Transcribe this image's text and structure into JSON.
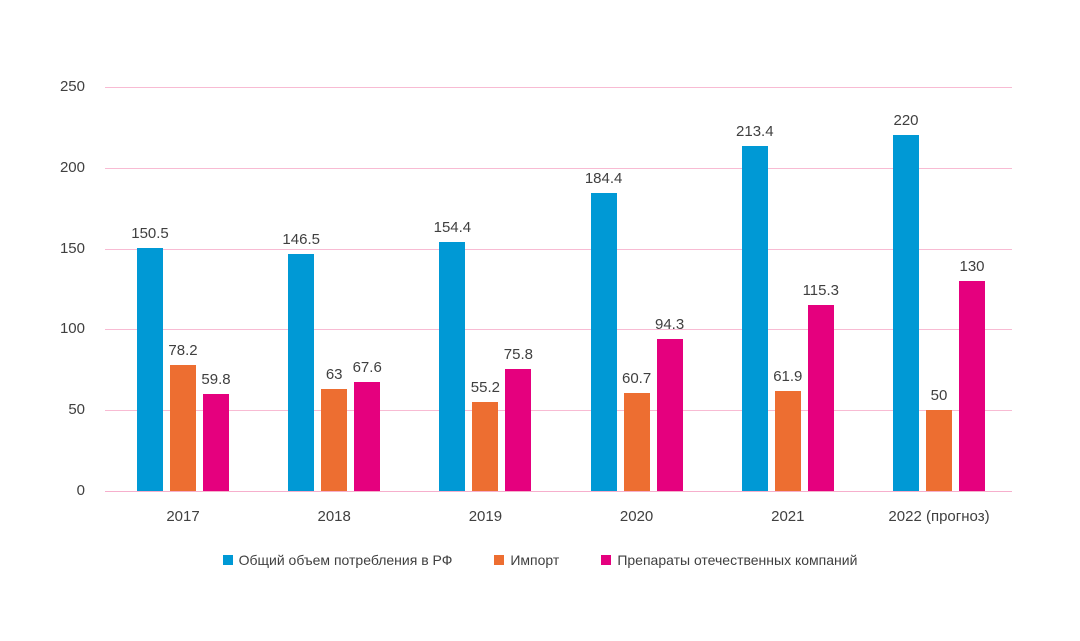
{
  "chart_data": {
    "type": "bar",
    "categories": [
      "2017",
      "2018",
      "2019",
      "2020",
      "2021",
      "2022 (прогноз)"
    ],
    "series": [
      {
        "name": "Общий объем потребления в РФ",
        "color": "#0099D5",
        "values": [
          150.5,
          146.5,
          154.4,
          184.4,
          213.4,
          220
        ],
        "labels": [
          "150.5",
          "146.5",
          "154.4",
          "184.4",
          "213.4",
          "220"
        ]
      },
      {
        "name": "Импорт",
        "color": "#ED6E31",
        "values": [
          78.2,
          63,
          55.2,
          60.7,
          61.9,
          50
        ],
        "labels": [
          "78.2",
          "63",
          "55.2",
          "60.7",
          "61.9",
          "50"
        ]
      },
      {
        "name": "Препараты отечественных компаний",
        "color": "#E5007E",
        "values": [
          59.8,
          67.6,
          75.8,
          94.3,
          115.3,
          130
        ],
        "labels": [
          "59.8",
          "67.6",
          "75.8",
          "94.3",
          "115.3",
          "130"
        ]
      }
    ],
    "title": "",
    "xlabel": "",
    "ylabel": "",
    "yticks": [
      0,
      50,
      100,
      150,
      200,
      250
    ],
    "ytick_labels": [
      "0",
      "50",
      "100",
      "150",
      "200",
      "250"
    ],
    "ylim": [
      0,
      250
    ],
    "grid": true,
    "gridline_color": "#F8BBD3",
    "text_color": "#404040",
    "background_color": "#FFFFFF",
    "legend_position": "bottom"
  }
}
